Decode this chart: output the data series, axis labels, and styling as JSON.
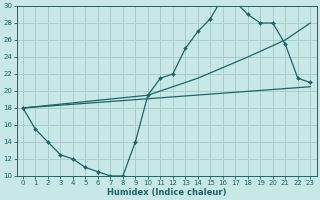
{
  "xlabel": "Humidex (Indice chaleur)",
  "bg_color": "#c8e8e8",
  "grid_color": "#aacccc",
  "line_color": "#1a6666",
  "xlim": [
    -0.5,
    23.5
  ],
  "ylim": [
    10,
    30
  ],
  "xticks": [
    0,
    1,
    2,
    3,
    4,
    5,
    6,
    7,
    8,
    9,
    10,
    11,
    12,
    13,
    14,
    15,
    16,
    17,
    18,
    19,
    20,
    21,
    22,
    23
  ],
  "yticks": [
    10,
    12,
    14,
    16,
    18,
    20,
    22,
    24,
    26,
    28,
    30
  ],
  "curve_x": [
    0,
    1,
    2,
    3,
    4,
    5,
    6,
    7,
    8,
    9,
    10,
    11,
    12,
    13,
    14,
    15,
    16,
    17,
    18,
    19,
    20,
    21,
    22,
    23
  ],
  "curve_y": [
    18,
    15.5,
    14,
    12.5,
    12,
    11,
    10.5,
    10,
    10,
    14,
    19.5,
    21.5,
    22,
    25,
    27,
    28.5,
    31,
    30.5,
    29,
    28,
    28,
    25.5,
    21.5,
    21
  ],
  "line2_x": [
    0,
    10,
    14,
    18,
    21,
    23
  ],
  "line2_y": [
    18,
    19.5,
    21.5,
    24,
    26,
    28
  ],
  "line3_x": [
    0,
    23
  ],
  "line3_y": [
    18,
    20.5
  ]
}
